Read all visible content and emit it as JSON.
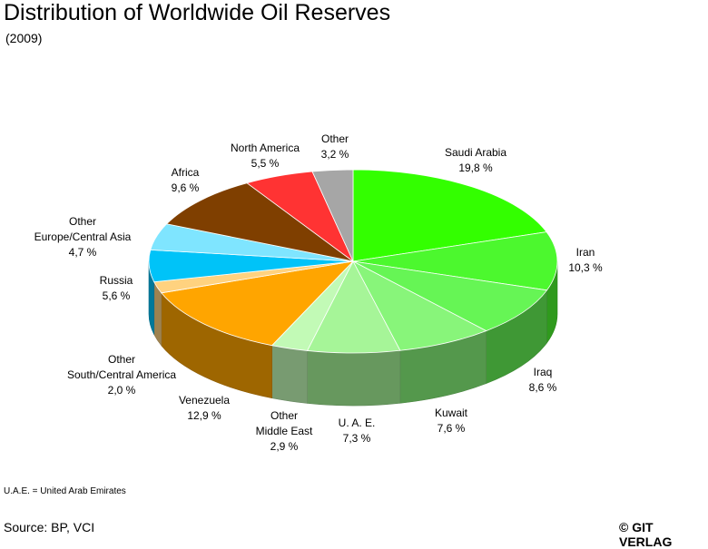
{
  "header": {
    "title": "Distribution of Worldwide Oil Reserves",
    "subtitle": "(2009)"
  },
  "footer": {
    "footnote": "U.A.E. = United Arab Emirates",
    "source": "Source: BP, VCI",
    "copyright": "© GIT VERLAG"
  },
  "chart_data": {
    "type": "pie",
    "title": "Distribution of Worldwide Oil Reserves",
    "subtitle": "(2009)",
    "three_d": true,
    "slices": [
      {
        "label": "Saudi Arabia",
        "value": 19.8,
        "value_label": "19,8 %",
        "color": "#33ff00"
      },
      {
        "label": "Iran",
        "value": 10.3,
        "value_label": "10,3 %",
        "color": "#4cf82e"
      },
      {
        "label": "Iraq",
        "value": 8.6,
        "value_label": "8,6 %",
        "color": "#66f555"
      },
      {
        "label": "Kuwait",
        "value": 7.6,
        "value_label": "7,6 %",
        "color": "#88f57a"
      },
      {
        "label": "U. A. E.",
        "value": 7.3,
        "value_label": "7,3 %",
        "color": "#a6f598"
      },
      {
        "label": "Other Middle East",
        "value": 2.9,
        "value_label": "2,9 %",
        "color": "#c2fab6"
      },
      {
        "label": "Venezuela",
        "value": 12.9,
        "value_label": "12,9 %",
        "color": "#ffa500"
      },
      {
        "label": "Other South/Central America",
        "value": 2.0,
        "value_label": "2,0 %",
        "color": "#ffd27f"
      },
      {
        "label": "Russia",
        "value": 5.6,
        "value_label": "5,6 %",
        "color": "#00c3f8"
      },
      {
        "label": "Other Europe/Central Asia",
        "value": 4.7,
        "value_label": "4,7 %",
        "color": "#7fe5ff"
      },
      {
        "label": "Africa",
        "value": 9.6,
        "value_label": "9,6 %",
        "color": "#7f3f00"
      },
      {
        "label": "North America",
        "value": 5.5,
        "value_label": "5,5 %",
        "color": "#ff3333"
      },
      {
        "label": "Other",
        "value": 3.2,
        "value_label": "3,2 %",
        "color": "#a6a6a6"
      }
    ],
    "slice_label_lines": [
      [
        "Saudi Arabia"
      ],
      [
        "Iran"
      ],
      [
        "Iraq"
      ],
      [
        "Kuwait"
      ],
      [
        "U. A. E."
      ],
      [
        "Other",
        "Middle East"
      ],
      [
        "Venezuela"
      ],
      [
        "Other",
        "South/Central America"
      ],
      [
        "Russia"
      ],
      [
        "Other",
        "Europe/Central Asia"
      ],
      [
        "Africa"
      ],
      [
        "North America"
      ],
      [
        "Other"
      ]
    ]
  }
}
